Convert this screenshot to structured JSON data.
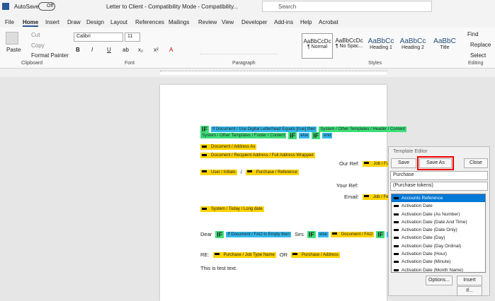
{
  "title_bar": {
    "autosave": "AutoSave",
    "toggle": "Off",
    "document_title": "Letter to Client  -  Compatibility Mode  -  Compatibility...",
    "search": "Search"
  },
  "tabs": [
    "File",
    "Home",
    "Insert",
    "Draw",
    "Design",
    "Layout",
    "References",
    "Mailings",
    "Review",
    "View",
    "Developer",
    "Add-ins",
    "Help",
    "Acrobat"
  ],
  "ribbon": {
    "clipboard": {
      "paste": "Paste",
      "cut": "Cut",
      "copy": "Copy",
      "format_painter": "Format Painter",
      "label": "Clipboard"
    },
    "font": {
      "name": "Calibri",
      "size": "11",
      "buttons": [
        "B",
        "I",
        "U",
        "ab",
        "x₂",
        "x²",
        "A"
      ],
      "label": "Font"
    },
    "paragraph": {
      "label": "Paragraph"
    },
    "styles": {
      "items": [
        {
          "preview": "AaBbCcDc",
          "name": "¶ Normal"
        },
        {
          "preview": "AaBbCcDc",
          "name": "¶ No Spac..."
        },
        {
          "preview": "AaBbCc",
          "name": "Heading 1"
        },
        {
          "preview": "AaBbCc",
          "name": "Heading 2"
        },
        {
          "preview": "AaBbC",
          "name": "Title"
        }
      ],
      "label": "Styles"
    },
    "editing": {
      "find": "Find",
      "replace": "Replace",
      "select": "Select",
      "label": "Editing"
    }
  },
  "document": {
    "lines": [
      [
        {
          "text": "IF",
          "style": "if"
        },
        {
          "text": "If Document / Use Digital Letterhead Equals [true] then",
          "style": "cyan"
        },
        {
          "text": "System / Other Templates / Header / Content",
          "style": "green"
        }
      ],
      [
        {
          "text": "System / Other Templates / Footer / Content",
          "style": "green"
        },
        {
          "text": "IF",
          "style": "if"
        },
        {
          "text": "else",
          "style": "cyan"
        },
        {
          "text": "IF",
          "style": "if"
        },
        {
          "text": "end",
          "style": "cyan"
        }
      ],
      [
        {
          "text": "Document / Address As",
          "style": "yellow"
        }
      ],
      [
        {
          "text": "Document / Recipient Address / Full Address Wrapped",
          "style": "yellow"
        }
      ],
      [
        {
          "text": "Our Ref:",
          "style": "plain"
        },
        {
          "text": "Job / Fu",
          "style": "yellow"
        }
      ],
      [
        {
          "text": "User / Initials",
          "style": "yellow"
        },
        {
          "text": "/",
          "style": "plain"
        },
        {
          "text": "Purchase / Reference",
          "style": "yellow"
        }
      ],
      [
        {
          "text": "Your Ref:",
          "style": "plain"
        }
      ],
      [
        {
          "text": "Email:",
          "style": "plain"
        },
        {
          "text": "Job / Fee",
          "style": "yellow"
        }
      ],
      [
        {
          "text": "System / Today / Long date",
          "style": "yellow"
        }
      ],
      [
        {
          "text": "Dear",
          "style": "plain"
        },
        {
          "text": "IF",
          "style": "if"
        },
        {
          "text": "If Document / FAO Is Empty then",
          "style": "cyan"
        },
        {
          "text": "Sirs",
          "style": "plain"
        },
        {
          "text": "IF",
          "style": "if"
        },
        {
          "text": "else",
          "style": "cyan"
        },
        {
          "text": "Document / FAO",
          "style": "yellow"
        },
        {
          "text": "IF",
          "style": "if"
        },
        {
          "text": "end",
          "style": "cyan"
        }
      ],
      [
        {
          "text": "RE:",
          "style": "plain"
        },
        {
          "text": "Purchase / Job Type Name",
          "style": "yellow"
        },
        {
          "text": "OR",
          "style": "plain"
        },
        {
          "text": "Purchase / Address",
          "style": "yellow"
        }
      ],
      [
        {
          "text": "This is test text.",
          "style": "plain"
        }
      ]
    ]
  },
  "dialog": {
    "title": "Template Editor",
    "buttons": [
      "Save",
      "Save As",
      "Close"
    ],
    "category": "Purchase",
    "tokens": "(Purchase tokens)",
    "list": [
      "Accounts Reference",
      "Activation Date",
      "Activation Date (As Number)",
      "Activation Date (Date And Time)",
      "Activation Date (Date Only)",
      "Activation Date (Day)",
      "Activation Date (Day Ordinal)",
      "Activation Date (Hour)",
      "Activation Date (Minute)",
      "Activation Date (Month Name)"
    ],
    "footer_buttons": [
      "Options...",
      "Insert",
      "If..."
    ]
  }
}
